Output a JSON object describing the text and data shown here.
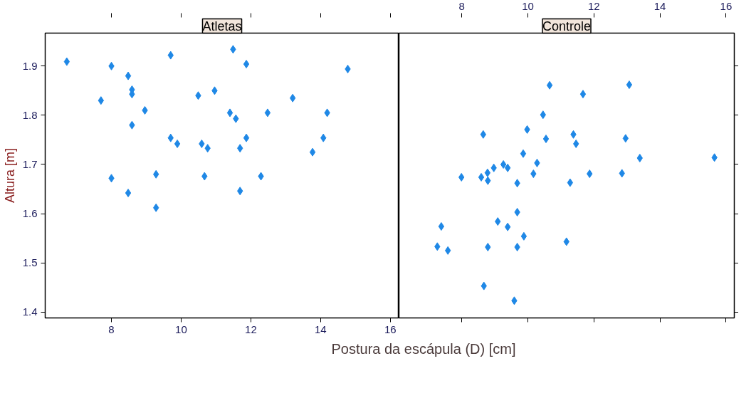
{
  "chart_data": [
    {
      "type": "scatter",
      "title": "Atletas",
      "xlabel": "Postura da escápula (D) [cm]",
      "ylabel": "Altura [m]",
      "marker": "diamond",
      "grid": false,
      "xlim": [
        6.1,
        16.25
      ],
      "ylim": [
        1.388,
        1.967
      ],
      "xticks": [
        8,
        10,
        12,
        14,
        16
      ],
      "yticks": [
        1.4,
        1.5,
        1.6,
        1.7,
        1.8,
        1.9
      ],
      "series": [
        {
          "color": "#1f88e6",
          "x": [
            6.72,
            8.0,
            8.48,
            8.59,
            8.59,
            7.7,
            8.96,
            8.59,
            9.7,
            9.89,
            10.59,
            10.76,
            8.0,
            9.28,
            8.48,
            9.28,
            9.7,
            10.49,
            10.96,
            11.49,
            11.87,
            14.78,
            13.2,
            11.4,
            11.57,
            12.48,
            14.19,
            11.87,
            11.69,
            14.08,
            13.77,
            12.29,
            11.69,
            10.67
          ],
          "values": [
            1.909,
            1.9,
            1.88,
            1.852,
            1.843,
            1.83,
            1.81,
            1.78,
            1.754,
            1.742,
            1.742,
            1.733,
            1.672,
            1.68,
            1.642,
            1.612,
            1.922,
            1.84,
            1.85,
            1.934,
            1.904,
            1.894,
            1.835,
            1.805,
            1.793,
            1.805,
            1.805,
            1.754,
            1.733,
            1.754,
            1.725,
            1.676,
            1.646,
            1.676
          ]
        }
      ]
    },
    {
      "type": "scatter",
      "title": "Controle",
      "marker": "diamond",
      "grid": false,
      "tick_labels": "x",
      "xlim": [
        6.1,
        16.25
      ],
      "ylim": [
        1.388,
        1.967
      ],
      "xticks": [
        8,
        10,
        12,
        14,
        16
      ],
      "yticks": [
        1.4,
        1.5,
        1.6,
        1.7,
        1.8,
        1.9
      ],
      "series": [
        {
          "color": "#1f88e6",
          "x": [
            10.66,
            10.46,
            9.98,
            8.65,
            10.55,
            9.86,
            10.28,
            10.17,
            8.97,
            9.26,
            9.39,
            8.78,
            8.59,
            8.79,
            7.99,
            9.68,
            9.68,
            9.09,
            9.39,
            9.88,
            7.38,
            7.26,
            7.58,
            8.79,
            9.68,
            11.17,
            8.67,
            9.59,
            11.67,
            13.07,
            11.38,
            11.46,
            12.96,
            13.39,
            15.65,
            11.87,
            12.85,
            11.28
          ],
          "values": [
            1.861,
            1.801,
            1.771,
            1.761,
            1.752,
            1.722,
            1.703,
            1.681,
            1.693,
            1.7,
            1.693,
            1.683,
            1.674,
            1.667,
            1.674,
            1.662,
            1.603,
            1.584,
            1.573,
            1.554,
            1.574,
            1.533,
            1.525,
            1.532,
            1.532,
            1.543,
            1.453,
            1.423,
            1.843,
            1.862,
            1.761,
            1.742,
            1.753,
            1.713,
            1.714,
            1.681,
            1.682,
            1.663
          ]
        }
      ]
    }
  ]
}
